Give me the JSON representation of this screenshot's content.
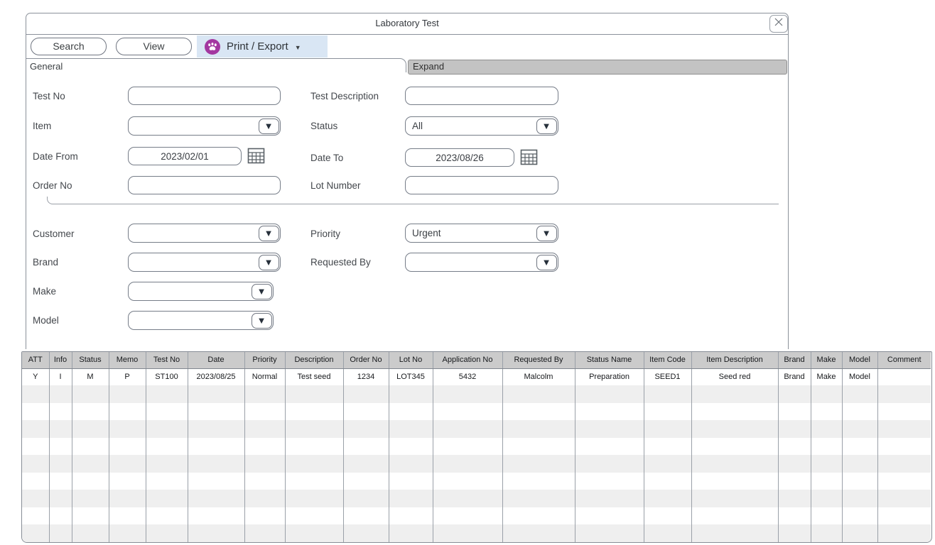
{
  "window": {
    "title": "Laboratory Test"
  },
  "toolbar": {
    "search_label": "Search",
    "view_label": "View",
    "print_export_label": "Print / Export"
  },
  "sections": {
    "general_label": "General",
    "expand_label": "Expand"
  },
  "icons": {
    "combo_arrow": "▼",
    "caret_down": "▼"
  },
  "form": {
    "test_no": {
      "label": "Test No",
      "value": ""
    },
    "test_description": {
      "label": "Test Description",
      "value": ""
    },
    "item": {
      "label": "Item",
      "value": ""
    },
    "status": {
      "label": "Status",
      "value": "All"
    },
    "date_from": {
      "label": "Date From",
      "value": "2023/02/01"
    },
    "date_to": {
      "label": "Date To",
      "value": "2023/08/26"
    },
    "order_no": {
      "label": "Order No",
      "value": ""
    },
    "lot_number": {
      "label": "Lot Number",
      "value": ""
    },
    "customer": {
      "label": "Customer",
      "value": ""
    },
    "priority": {
      "label": "Priority",
      "value": "Urgent"
    },
    "brand": {
      "label": "Brand",
      "value": ""
    },
    "requested_by": {
      "label": "Requested By",
      "value": ""
    },
    "make": {
      "label": "Make",
      "value": ""
    },
    "model": {
      "label": "Model",
      "value": ""
    }
  },
  "table": {
    "columns": [
      "ATT",
      "Info",
      "Status",
      "Memo",
      "Test No",
      "Date",
      "Priority",
      "Description",
      "Order No",
      "Lot No",
      "Application No",
      "Requested By",
      "Status Name",
      "Item Code",
      "Item Description",
      "Brand",
      "Make",
      "Model",
      "Comment"
    ],
    "rows": [
      [
        "Y",
        "I",
        "M",
        "P",
        "ST100",
        "2023/08/25",
        "Normal",
        "Test seed",
        "1234",
        "LOT345",
        "5432",
        "Malcolm",
        "Preparation",
        "SEED1",
        "Seed red",
        "Brand",
        "Make",
        "Model",
        ""
      ]
    ],
    "empty_row_count": 9
  },
  "colors": {
    "print_export_bg": "#d9e6f4",
    "icon_purple": "#a337a0",
    "table_header_bg": "#cbcbcb",
    "stripe_gray": "#efefef",
    "window_border": "#8b919a"
  }
}
